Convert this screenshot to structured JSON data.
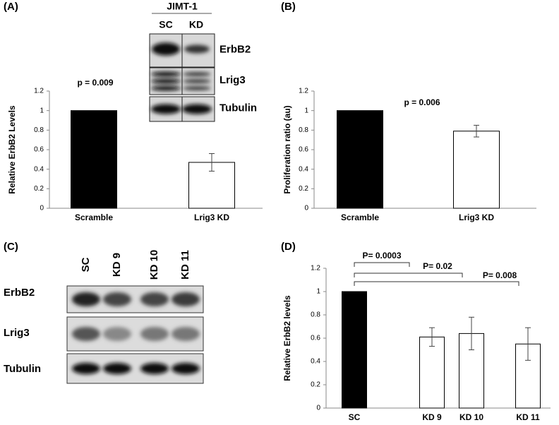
{
  "chart_data": [
    {
      "type": "bar",
      "panel_label": "(A)",
      "ylabel": "Relative ErbB2 Levels",
      "categories": [
        "Scramble",
        "Lrig3 KD"
      ],
      "values": [
        1,
        0.47
      ],
      "errors": [
        null,
        0.09
      ],
      "colors": [
        "#000000",
        "#ffffff"
      ],
      "annotations": [
        "p = 0.009"
      ],
      "ylim": [
        0,
        1.2
      ],
      "yticks": [
        0,
        0.2,
        0.4,
        0.6,
        0.8,
        1,
        1.2
      ]
    },
    {
      "type": "bar",
      "panel_label": "(B)",
      "ylabel": "Proliferation ratio (au)",
      "categories": [
        "Scramble",
        "Lrig3 KD"
      ],
      "values": [
        1,
        0.79
      ],
      "errors": [
        null,
        0.06
      ],
      "colors": [
        "#000000",
        "#ffffff"
      ],
      "annotations": [
        "p = 0.006"
      ],
      "ylim": [
        0,
        1.2
      ],
      "yticks": [
        0,
        0.2,
        0.4,
        0.6,
        0.8,
        1,
        1.2
      ]
    },
    {
      "type": "bar",
      "panel_label": "(D)",
      "ylabel": "Relative ErbB2 levels",
      "categories": [
        "SC",
        "KD 9",
        "KD 10",
        "KD 11"
      ],
      "values": [
        1,
        0.61,
        0.64,
        0.55
      ],
      "errors": [
        null,
        0.08,
        0.14,
        0.14
      ],
      "colors": [
        "#000000",
        "#ffffff",
        "#ffffff",
        "#ffffff"
      ],
      "annotations": [
        "P= 0.0003",
        "P= 0.02",
        "P= 0.008"
      ],
      "ylim": [
        0,
        1.2
      ],
      "yticks": [
        0,
        0.2,
        0.4,
        0.6,
        0.8,
        1,
        1.2
      ]
    }
  ],
  "blots": [
    {
      "title": "JIMT-1",
      "lanes": [
        "SC",
        "KD"
      ],
      "rows": [
        "ErbB2",
        "Lrig3",
        "Tubulin"
      ]
    },
    {
      "panel_label": "(C)",
      "lanes": [
        "SC",
        "KD 9",
        "KD 10",
        "KD 11"
      ],
      "rows": [
        "ErbB2",
        "Lrig3",
        "Tubulin"
      ]
    }
  ]
}
